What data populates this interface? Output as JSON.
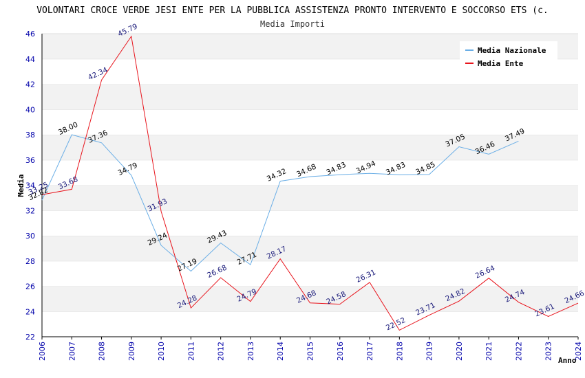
{
  "chart_data": {
    "type": "line",
    "title": "VOLONTARI CROCE VERDE JESI ENTE PER LA PUBBLICA ASSISTENZA PRONTO INTERVENTO E SOCCORSO ETS (c.",
    "subtitle": "Media Importi",
    "xlabel": "Anno",
    "ylabel": "Media",
    "ylim": [
      22,
      46
    ],
    "yticks": [
      22,
      24,
      26,
      28,
      30,
      32,
      34,
      36,
      38,
      40,
      42,
      44,
      46
    ],
    "x": [
      2006,
      2007,
      2008,
      2009,
      2010,
      2011,
      2012,
      2013,
      2014,
      2015,
      2016,
      2017,
      2018,
      2019,
      2020,
      2021,
      2022,
      2023,
      2024
    ],
    "grid": "horizontal-bands",
    "legend_position": "top-right",
    "colors": {
      "naz": "#6aaee6",
      "ente": "#e8141c",
      "band": "#f2f2f2",
      "tick": "#0000aa"
    },
    "series": [
      {
        "name": "Media Nazionale",
        "values": [
          32.82,
          38.0,
          37.36,
          34.79,
          29.24,
          27.19,
          29.43,
          27.71,
          34.32,
          34.68,
          34.83,
          34.94,
          34.83,
          34.85,
          37.05,
          36.46,
          37.49,
          null,
          null
        ],
        "labels": [
          "32.82",
          "38.00",
          "37.36",
          "34.79",
          "29.24",
          "27.19",
          "29.43",
          "27.71",
          "34.32",
          "34.68",
          "34.83",
          "34.94",
          "34.83",
          "34.85",
          "37.05",
          "36.46",
          "37.49",
          null,
          null
        ]
      },
      {
        "name": "Media Ente",
        "values": [
          33.25,
          33.68,
          42.34,
          45.79,
          31.93,
          24.28,
          26.68,
          24.79,
          28.17,
          24.68,
          24.58,
          26.31,
          22.52,
          23.71,
          24.82,
          26.64,
          24.74,
          23.61,
          24.66
        ],
        "labels": [
          "33.25",
          "33.68",
          "42.34",
          "45.79",
          "31.93",
          "24.28",
          "26.68",
          "24.79",
          "28.17",
          "24.68",
          "24.58",
          "26.31",
          "22.52",
          "23.71",
          "24.82",
          "26.64",
          "24.74",
          "23.61",
          "24.66"
        ]
      }
    ]
  }
}
